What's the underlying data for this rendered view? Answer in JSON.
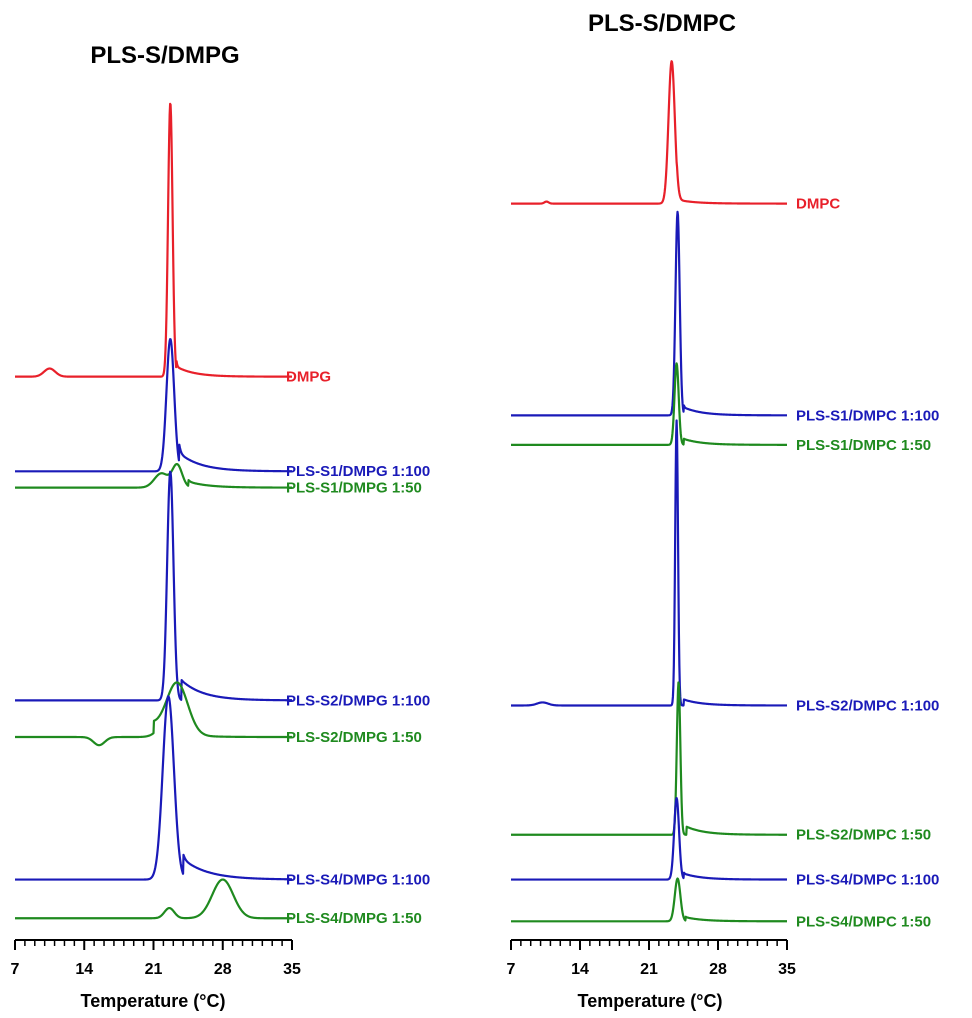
{
  "chart_data": [
    {
      "type": "line",
      "title": "PLS-S/DMPG",
      "xlabel": "Temperature (°C)",
      "ylabel": "",
      "xlim": [
        7,
        35
      ],
      "xticks": [
        7,
        14,
        21,
        28,
        35
      ],
      "grid": false,
      "legend": "labels at right end of each curve",
      "series": [
        {
          "name": "DMPG",
          "color": "#e8202a",
          "baseline": 0.63,
          "peaks": [
            {
              "x": 22.7,
              "h": 0.269,
              "w": 0.32
            },
            {
              "x": 10.5,
              "h": 0.008,
              "w": 0.8
            }
          ],
          "shoulder": {
            "x": 23.3,
            "h": 0.01,
            "w": 1.8
          }
        },
        {
          "name": "PLS-S1/DMPG 1:100",
          "color": "#1a1ab8",
          "baseline": 0.537,
          "peaks": [
            {
              "x": 22.7,
              "h": 0.13,
              "w": 0.55
            }
          ],
          "shoulder": {
            "x": 23.6,
            "h": 0.018,
            "w": 2.2
          }
        },
        {
          "name": "PLS-S1/DMPG 1:50",
          "color": "#1f8a1f",
          "baseline": 0.521,
          "peaks": [
            {
              "x": 21.8,
              "h": 0.014,
              "w": 1.0
            },
            {
              "x": 23.4,
              "h": 0.022,
              "w": 0.7
            }
          ],
          "shoulder": {
            "x": 24.5,
            "h": 0.006,
            "w": 2.0
          }
        },
        {
          "name": "PLS-S2/DMPG 1:100",
          "color": "#1a1ab8",
          "baseline": 0.312,
          "peaks": [
            {
              "x": 22.7,
              "h": 0.225,
              "w": 0.45
            }
          ],
          "shoulder": {
            "x": 23.8,
            "h": 0.02,
            "w": 2.2
          }
        },
        {
          "name": "PLS-S2/DMPG 1:50",
          "color": "#1f8a1f",
          "baseline": 0.276,
          "peaks": [
            {
              "x": 23.4,
              "h": 0.05,
              "w": 1.5
            },
            {
              "x": 15.5,
              "h": -0.008,
              "w": 0.8
            }
          ],
          "shoulder": {
            "x": 21.0,
            "h": 0.012,
            "w": 2.0
          }
        },
        {
          "name": "PLS-S4/DMPG 1:100",
          "color": "#1a1ab8",
          "baseline": 0.136,
          "peaks": [
            {
              "x": 22.5,
              "h": 0.18,
              "w": 0.8
            }
          ],
          "shoulder": {
            "x": 24.0,
            "h": 0.02,
            "w": 2.5
          }
        },
        {
          "name": "PLS-S4/DMPG 1:50",
          "color": "#1f8a1f",
          "baseline": 0.098,
          "peaks": [
            {
              "x": 22.6,
              "h": 0.01,
              "w": 0.7
            },
            {
              "x": 28.0,
              "h": 0.038,
              "w": 1.5
            }
          ],
          "shoulder": {
            "x": 18.0,
            "h": 0.0,
            "w": 1.0
          }
        }
      ]
    },
    {
      "type": "line",
      "title": "PLS-S/DMPC",
      "xlabel": "Temperature (°C)",
      "ylabel": "",
      "xlim": [
        7,
        35
      ],
      "xticks": [
        7,
        14,
        21,
        28,
        35
      ],
      "grid": false,
      "legend": "labels at right end of each curve",
      "series": [
        {
          "name": "DMPC",
          "color": "#e8202a",
          "baseline": 0.8,
          "peaks": [
            {
              "x": 23.3,
              "h": 0.14,
              "w": 0.45
            },
            {
              "x": 10.6,
              "h": 0.002,
              "w": 0.3
            }
          ],
          "shoulder": {
            "x": 23.8,
            "h": 0.004,
            "w": 1.8
          }
        },
        {
          "name": "PLS-S1/DMPC 1:100",
          "color": "#1a1ab8",
          "baseline": 0.592,
          "peaks": [
            {
              "x": 23.9,
              "h": 0.2,
              "w": 0.3
            }
          ],
          "shoulder": {
            "x": 24.5,
            "h": 0.008,
            "w": 1.8
          }
        },
        {
          "name": "PLS-S1/DMPC 1:50",
          "color": "#1f8a1f",
          "baseline": 0.563,
          "peaks": [
            {
              "x": 23.8,
              "h": 0.08,
              "w": 0.3
            }
          ],
          "shoulder": {
            "x": 24.5,
            "h": 0.006,
            "w": 1.8
          }
        },
        {
          "name": "PLS-S2/DMPC 1:100",
          "color": "#1a1ab8",
          "baseline": 0.307,
          "peaks": [
            {
              "x": 23.8,
              "h": 0.28,
              "w": 0.2
            },
            {
              "x": 10.2,
              "h": 0.003,
              "w": 0.8
            }
          ],
          "shoulder": {
            "x": 24.5,
            "h": 0.006,
            "w": 1.8
          }
        },
        {
          "name": "PLS-S2/DMPC 1:50",
          "color": "#1f8a1f",
          "baseline": 0.18,
          "peaks": [
            {
              "x": 24.0,
              "h": 0.15,
              "w": 0.25
            }
          ],
          "shoulder": {
            "x": 24.8,
            "h": 0.008,
            "w": 1.8
          }
        },
        {
          "name": "PLS-S4/DMPC 1:100",
          "color": "#1a1ab8",
          "baseline": 0.136,
          "peaks": [
            {
              "x": 23.8,
              "h": 0.08,
              "w": 0.35
            }
          ],
          "shoulder": {
            "x": 24.5,
            "h": 0.006,
            "w": 1.8
          }
        },
        {
          "name": "PLS-S4/DMPC 1:50",
          "color": "#1f8a1f",
          "baseline": 0.095,
          "peaks": [
            {
              "x": 23.9,
              "h": 0.042,
              "w": 0.4
            }
          ],
          "shoulder": {
            "x": 24.7,
            "h": 0.004,
            "w": 1.8
          }
        }
      ]
    }
  ]
}
